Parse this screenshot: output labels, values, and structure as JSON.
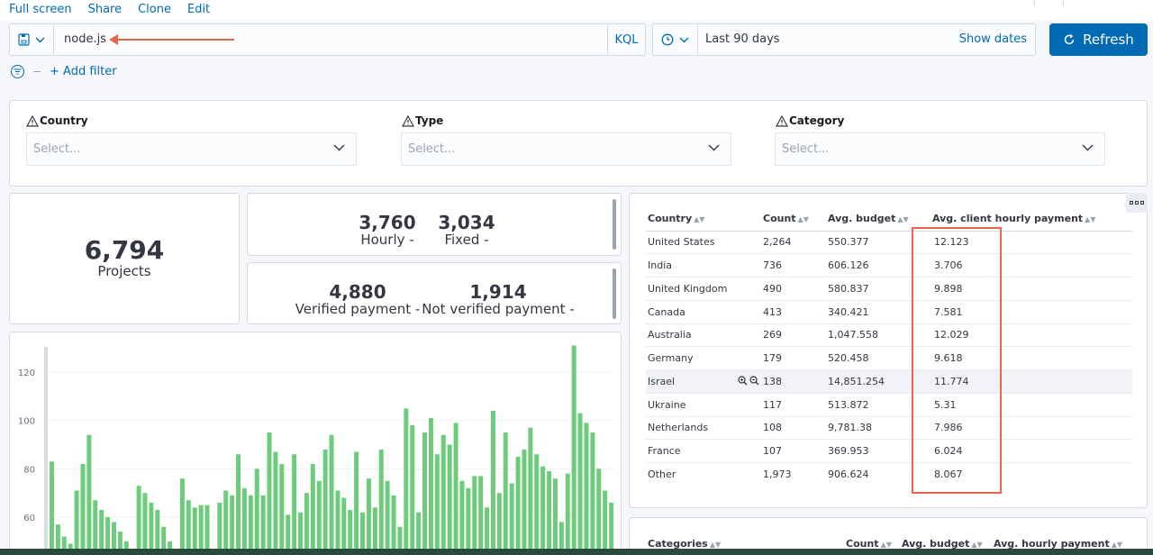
{
  "top_links": [
    "Full screen",
    "Share",
    "Clone",
    "Edit"
  ],
  "query": {
    "value": "node.js",
    "language": "KQL"
  },
  "time": {
    "range": "Last 90 days",
    "show_dates": "Show dates"
  },
  "refresh_label": "Refresh",
  "add_filter": "+ Add filter",
  "controls": [
    {
      "label": "Country",
      "placeholder": "Select..."
    },
    {
      "label": "Type",
      "placeholder": "Select..."
    },
    {
      "label": "Category",
      "placeholder": "Select..."
    }
  ],
  "metrics": {
    "projects": {
      "value": "6,794",
      "label": "Projects"
    },
    "hourly": {
      "value": "3,760",
      "label": "Hourly -"
    },
    "fixed": {
      "value": "3,034",
      "label": "Fixed -"
    },
    "verified": {
      "value": "4,880",
      "label": "Verified payment -"
    },
    "not_verified": {
      "value": "1,914",
      "label": "Not verified payment -"
    }
  },
  "country_table": {
    "headers": [
      "Country",
      "Count",
      "Avg. budget",
      "Avg. client hourly payment"
    ],
    "rows": [
      [
        "United States",
        "2,264",
        "550.377",
        "12.123"
      ],
      [
        "India",
        "736",
        "606.126",
        "3.706"
      ],
      [
        "United Kingdom",
        "490",
        "580.837",
        "9.898"
      ],
      [
        "Canada",
        "413",
        "340.421",
        "7.581"
      ],
      [
        "Australia",
        "269",
        "1,047.558",
        "12.029"
      ],
      [
        "Germany",
        "179",
        "520.458",
        "9.618"
      ],
      [
        "Israel",
        "138",
        "14,851.254",
        "11.774"
      ],
      [
        "Ukraine",
        "117",
        "513.872",
        "5.31"
      ],
      [
        "Netherlands",
        "108",
        "9,781.38",
        "7.986"
      ],
      [
        "France",
        "107",
        "369.953",
        "6.024"
      ],
      [
        "Other",
        "1,973",
        "906.624",
        "8.067"
      ]
    ],
    "highlighted_row": 6
  },
  "categories_table": {
    "headers": [
      "Categories",
      "Count",
      "Avg. budget",
      "Avg. hourly payment"
    ]
  },
  "chart_data": {
    "type": "bar",
    "y_ticks": [
      "60",
      "80",
      "100",
      "120"
    ],
    "ylim": [
      40,
      130
    ],
    "color": "#6dcc7b",
    "values": [
      83,
      57,
      52,
      49,
      71,
      82,
      94,
      67,
      63,
      60,
      58,
      54,
      50,
      46,
      73,
      70,
      66,
      63,
      56,
      50,
      42,
      76,
      67,
      64,
      65,
      65,
      45,
      66,
      71,
      69,
      86,
      72,
      69,
      80,
      69,
      95,
      87,
      82,
      61,
      86,
      62,
      70,
      82,
      75,
      88,
      94,
      71,
      68,
      63,
      87,
      62,
      76,
      64,
      88,
      75,
      69,
      56,
      105,
      98,
      62,
      95,
      101,
      86,
      94,
      90,
      99,
      75,
      72,
      77,
      77,
      64,
      104,
      70,
      95,
      74,
      85,
      88,
      97,
      86,
      81,
      79,
      76,
      58,
      78,
      131,
      103,
      99,
      95,
      80,
      71,
      66
    ]
  }
}
